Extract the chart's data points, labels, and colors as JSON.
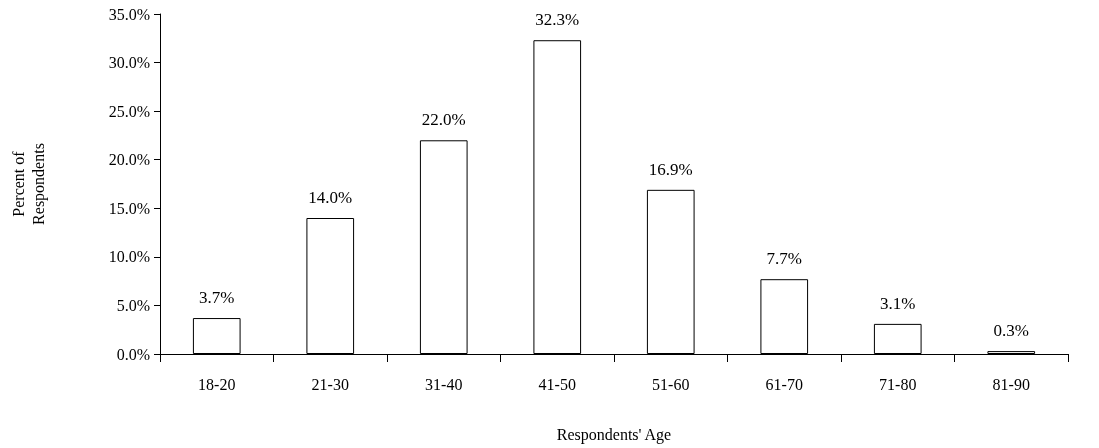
{
  "chart_data": {
    "type": "bar",
    "xlabel": "Respondents' Age",
    "ylabel": "Percent of\nRespondents",
    "categories": [
      "18-20",
      "21-30",
      "31-40",
      "41-50",
      "51-60",
      "61-70",
      "71-80",
      "81-90"
    ],
    "values": [
      3.7,
      14.0,
      22.0,
      32.3,
      16.9,
      7.7,
      3.1,
      0.3
    ],
    "value_labels": [
      "3.7%",
      "14.0%",
      "22.0%",
      "32.3%",
      "16.9%",
      "7.7%",
      "3.1%",
      "0.3%"
    ],
    "color": "#ffffff",
    "ylim": [
      0,
      35
    ],
    "yticks": [
      {
        "value": 0,
        "label": "0.0%"
      },
      {
        "value": 5,
        "label": "5.0%"
      },
      {
        "value": 10,
        "label": "10.0%"
      },
      {
        "value": 15,
        "label": "15.0%"
      },
      {
        "value": 20,
        "label": "20.0%"
      },
      {
        "value": 25,
        "label": "25.0%"
      },
      {
        "value": 30,
        "label": "30.0%"
      },
      {
        "value": 35,
        "label": "35.0%"
      }
    ],
    "grid": false
  }
}
